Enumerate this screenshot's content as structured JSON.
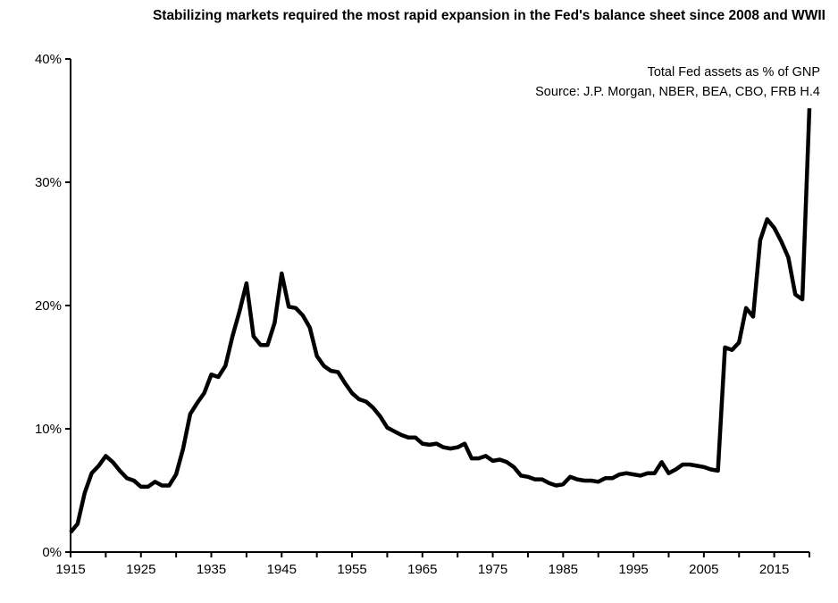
{
  "chart_data": {
    "type": "line",
    "title": "Stabilizing markets required the most rapid expansion in the Fed's balance sheet since 2008 and WWII",
    "subtitle": "Total Fed assets as % of GNP",
    "source": "Source: J.P. Morgan, NBER, BEA, CBO, FRB H.4",
    "xlim": [
      1915,
      2020
    ],
    "ylim": [
      0,
      40
    ],
    "xticks": [
      "1915",
      "1925",
      "1935",
      "1945",
      "1955",
      "1965",
      "1975",
      "1985",
      "1995",
      "2005",
      "2015"
    ],
    "yticks": [
      "0%",
      "10%",
      "20%",
      "30%",
      "40%"
    ],
    "grid": false,
    "line_color": "#000000",
    "x": [
      1915,
      1916,
      1917,
      1918,
      1919,
      1920,
      1921,
      1922,
      1923,
      1924,
      1925,
      1926,
      1927,
      1928,
      1929,
      1930,
      1931,
      1932,
      1933,
      1934,
      1935,
      1936,
      1937,
      1938,
      1939,
      1940,
      1941,
      1942,
      1943,
      1944,
      1945,
      1946,
      1947,
      1948,
      1949,
      1950,
      1951,
      1952,
      1953,
      1954,
      1955,
      1956,
      1957,
      1958,
      1959,
      1960,
      1961,
      1962,
      1963,
      1964,
      1965,
      1966,
      1967,
      1968,
      1969,
      1970,
      1971,
      1972,
      1973,
      1974,
      1975,
      1976,
      1977,
      1978,
      1979,
      1980,
      1981,
      1982,
      1983,
      1984,
      1985,
      1986,
      1987,
      1988,
      1989,
      1990,
      1991,
      1992,
      1993,
      1994,
      1995,
      1996,
      1997,
      1998,
      1999,
      2000,
      2001,
      2002,
      2003,
      2004,
      2005,
      2006,
      2007,
      2008,
      2009,
      2010,
      2011,
      2012,
      2013,
      2014,
      2015,
      2016,
      2017,
      2018,
      2019,
      2020
    ],
    "values": [
      1.6,
      2.3,
      4.8,
      6.4,
      7.0,
      7.8,
      7.3,
      6.6,
      6.0,
      5.8,
      5.3,
      5.3,
      5.7,
      5.4,
      5.4,
      6.3,
      8.4,
      11.2,
      12.1,
      12.9,
      14.4,
      14.2,
      15.1,
      17.5,
      19.5,
      21.8,
      17.5,
      16.8,
      16.8,
      18.6,
      22.6,
      19.9,
      19.8,
      19.2,
      18.2,
      15.9,
      15.1,
      14.7,
      14.6,
      13.7,
      12.9,
      12.4,
      12.2,
      11.7,
      11.0,
      10.1,
      9.8,
      9.5,
      9.3,
      9.3,
      8.8,
      8.7,
      8.8,
      8.5,
      8.4,
      8.5,
      8.8,
      7.6,
      7.6,
      7.8,
      7.4,
      7.5,
      7.3,
      6.9,
      6.2,
      6.1,
      5.9,
      5.9,
      5.6,
      5.4,
      5.5,
      6.1,
      5.9,
      5.8,
      5.8,
      5.7,
      6.0,
      6.0,
      6.3,
      6.4,
      6.3,
      6.2,
      6.4,
      6.4,
      7.3,
      6.4,
      6.7,
      7.1,
      7.1,
      7.0,
      6.9,
      6.7,
      6.6,
      16.6,
      16.4,
      17.0,
      19.8,
      19.1,
      25.3,
      27.0,
      26.3,
      25.2,
      23.9,
      20.9,
      20.5,
      36.0
    ]
  }
}
